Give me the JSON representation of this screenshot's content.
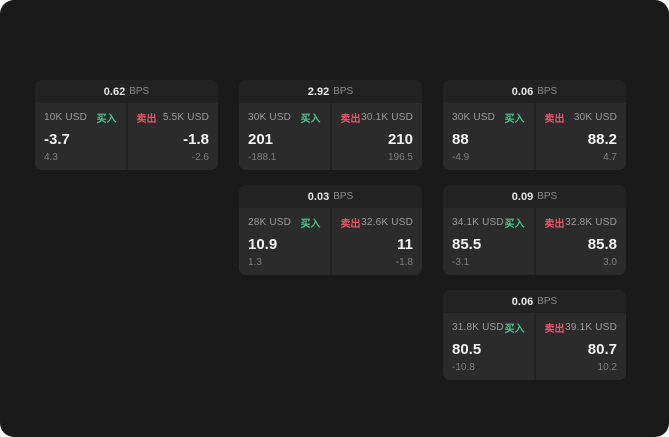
{
  "labels": {
    "bps_unit": "BPS",
    "buy": "买入",
    "sell": "卖出"
  },
  "colors": {
    "background": "#1a1a1a",
    "card": "#222222",
    "panel": "#2b2b2b",
    "buy_green": "#4cc38a",
    "sell_red": "#e5556a"
  },
  "cards": [
    {
      "bps": "0.62",
      "buy": {
        "size": "10K USD",
        "price": "-3.7",
        "delta": "4.3"
      },
      "sell": {
        "size": "5.5K USD",
        "price": "-1.8",
        "delta": "-2.6"
      }
    },
    {
      "bps": "2.92",
      "buy": {
        "size": "30K USD",
        "price": "201",
        "delta": "-188.1"
      },
      "sell": {
        "size": "30.1K USD",
        "price": "210",
        "delta": "196.5"
      }
    },
    {
      "bps": "0.06",
      "buy": {
        "size": "30K USD",
        "price": "88",
        "delta": "-4.9"
      },
      "sell": {
        "size": "30K USD",
        "price": "88.2",
        "delta": "4.7"
      }
    },
    {
      "bps": "0.03",
      "buy": {
        "size": "28K USD",
        "price": "10.9",
        "delta": "1.3"
      },
      "sell": {
        "size": "32.6K USD",
        "price": "11",
        "delta": "-1.8"
      }
    },
    {
      "bps": "0.09",
      "buy": {
        "size": "34.1K USD",
        "price": "85.5",
        "delta": "-3.1"
      },
      "sell": {
        "size": "32.8K USD",
        "price": "85.8",
        "delta": "3.0"
      }
    },
    {
      "bps": "0.06",
      "buy": {
        "size": "31.8K USD",
        "price": "80.5",
        "delta": "-10.8"
      },
      "sell": {
        "size": "39.1K USD",
        "price": "80.7",
        "delta": "10.2"
      }
    }
  ]
}
